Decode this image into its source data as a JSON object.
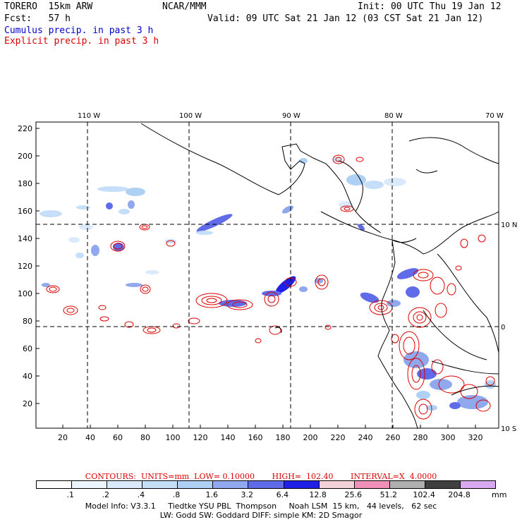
{
  "header": {
    "model": "TORERO  15km ARW",
    "center": "NCAR/MMM",
    "init": "Init: 00 UTC Thu 19 Jan 12",
    "fcst": "Fcst:   57 h",
    "valid": "Valid: 09 UTC Sat 21 Jan 12 (03 CST Sat 21 Jan 12)",
    "cumulus_legend": "Cumulus precip. in past 3 h",
    "explicit_legend": "Explicit precip. in past 3 h"
  },
  "axes": {
    "top_labels": [
      "110 W",
      "100 W",
      "90 W",
      "80 W",
      "70 W"
    ],
    "right_labels": [
      "10 N",
      "0",
      "10 S"
    ],
    "left_ticks": [
      "220",
      "200",
      "180",
      "160",
      "140",
      "120",
      "100",
      "80",
      "60",
      "40",
      "20"
    ],
    "bottom_ticks": [
      "20",
      "40",
      "60",
      "80",
      "100",
      "120",
      "140",
      "160",
      "180",
      "200",
      "220",
      "240",
      "260",
      "280",
      "300",
      "320"
    ]
  },
  "contours_info": "CONTOURS:  UNITS=mm  LOW= 0.10000       HIGH=  102.40       INTERVAL=X  4.0000",
  "colorbar": {
    "labels": [
      ".1",
      ".2",
      ".4",
      ".8",
      "1.6",
      "3.2",
      "6.4",
      "12.8",
      "25.6",
      "51.2",
      "102.4",
      "204.8"
    ],
    "unit": "mm",
    "colors": [
      "#ffffff",
      "#ecf4fd",
      "#dbeafb",
      "#c6dff9",
      "#afd0f5",
      "#8fa8ee",
      "#5f6be8",
      "#1f1fe6",
      "#f4d0d8",
      "#f090b8",
      "#b0b0b0",
      "#404040",
      "#d8a8f0"
    ]
  },
  "footer": {
    "line1": "Model Info: V3.3.1     Tiedtke YSU PBL  Thompson     Noah LSM  15 km,   44 levels,   62 sec",
    "line2": "LW: Godd SW: Goddard DIFF: simple KM: 2D Smagor"
  },
  "colors": {
    "cumulus": "#3048e0",
    "explicit": "#dd0000",
    "grid": "#000000"
  }
}
